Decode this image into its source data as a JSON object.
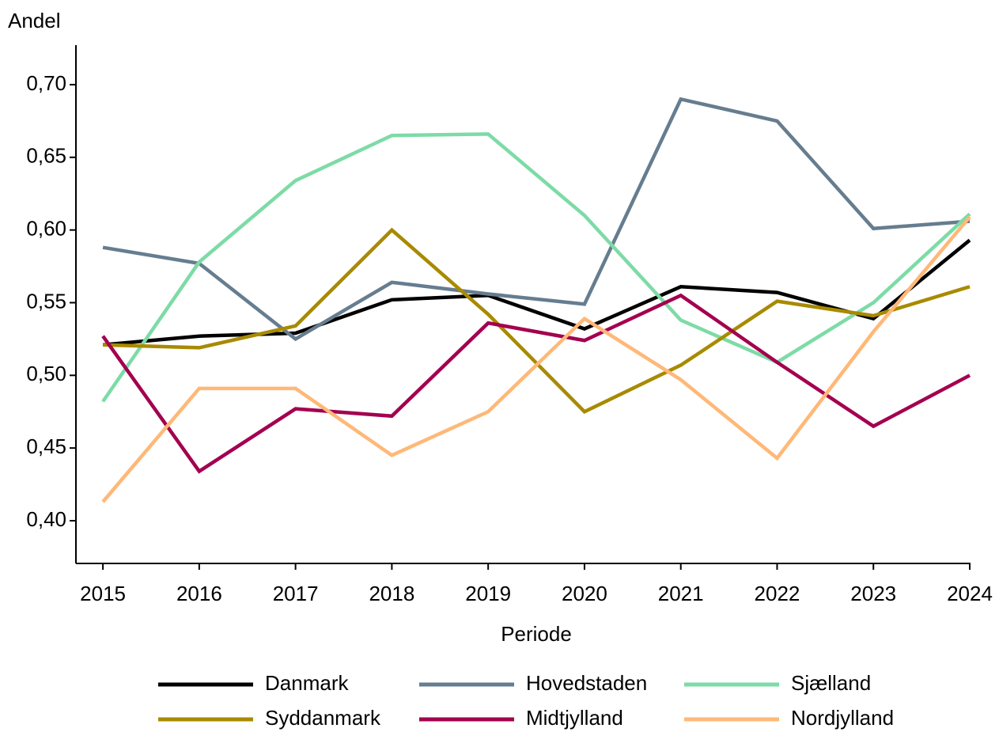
{
  "chart_data": {
    "type": "line",
    "y_label": "Andel",
    "x_label": "Periode",
    "x": [
      2015,
      2016,
      2017,
      2018,
      2019,
      2020,
      2021,
      2022,
      2023,
      2024
    ],
    "xlim": [
      2014.72,
      2024
    ],
    "xticks": [
      2015,
      2016,
      2017,
      2018,
      2019,
      2020,
      2021,
      2022,
      2023,
      2024
    ],
    "ylim": [
      0.3706,
      0.7272
    ],
    "yticks": [
      {
        "value": 0.4,
        "label": "0,40"
      },
      {
        "value": 0.45,
        "label": "0,45"
      },
      {
        "value": 0.5,
        "label": "0,50"
      },
      {
        "value": 0.55,
        "label": "0,55"
      },
      {
        "value": 0.6,
        "label": "0,60"
      },
      {
        "value": 0.65,
        "label": "0,65"
      },
      {
        "value": 0.7,
        "label": "0,70"
      }
    ],
    "series": [
      {
        "name": "Danmark",
        "color": "#000000",
        "values": [
          0.521,
          0.527,
          0.529,
          0.552,
          0.555,
          0.532,
          0.561,
          0.557,
          0.539,
          0.593
        ]
      },
      {
        "name": "Hovedstaden",
        "color": "#667d8f",
        "values": [
          0.588,
          0.577,
          0.525,
          0.564,
          0.556,
          0.549,
          0.69,
          0.675,
          0.601,
          0.606
        ]
      },
      {
        "name": "Sjælland",
        "color": "#7ddba6",
        "values": [
          0.482,
          0.578,
          0.634,
          0.665,
          0.666,
          0.61,
          0.538,
          0.509,
          0.55,
          0.611
        ]
      },
      {
        "name": "Syddanmark",
        "color": "#a88a00",
        "values": [
          0.521,
          0.519,
          0.534,
          0.6,
          0.542,
          0.475,
          0.507,
          0.551,
          0.541,
          0.561
        ]
      },
      {
        "name": "Midtjylland",
        "color": "#a3004f",
        "values": [
          0.527,
          0.434,
          0.477,
          0.472,
          0.536,
          0.524,
          0.555,
          0.509,
          0.465,
          0.5
        ]
      },
      {
        "name": "Nordjylland",
        "color": "#ffb877",
        "values": [
          0.413,
          0.491,
          0.491,
          0.445,
          0.475,
          0.539,
          0.497,
          0.443,
          0.53,
          0.609
        ]
      }
    ]
  }
}
